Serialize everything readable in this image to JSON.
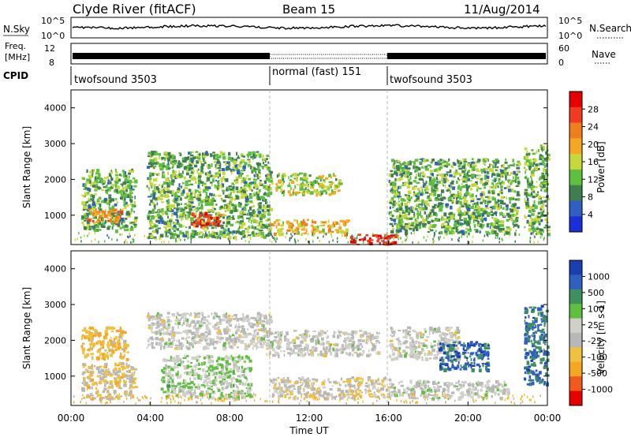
{
  "header": {
    "station": "Clyde River (fitACF)",
    "beam": "Beam 15",
    "date": "11/Aug/2014"
  },
  "panels": {
    "nsky": {
      "label": "N.Sky",
      "right_label": "N.Search",
      "left_ticks": [
        "10^5",
        "10^0"
      ],
      "right_ticks": [
        "10^5",
        "10^0"
      ]
    },
    "freq": {
      "label_line1": "Freq.",
      "label_line2": "[MHz]",
      "left_ticks": [
        "12",
        "8"
      ],
      "right_ticks": [
        "60",
        "0"
      ],
      "right_label": "Nave"
    },
    "cpid": {
      "label": "CPID",
      "segments": [
        "twofsound 3503",
        "normal (fast) 151",
        "twofsound 3503"
      ]
    }
  },
  "x_axis": {
    "title": "Time UT",
    "ticks": [
      "00:00",
      "04:00",
      "08:00",
      "12:00",
      "16:00",
      "20:00",
      "00:00"
    ]
  },
  "colors": {
    "power": [
      "#1a2fd6",
      "#2f5fc0",
      "#3f7f4f",
      "#5fbf3f",
      "#c8d83c",
      "#f5a623",
      "#f07e1e",
      "#ef3b22",
      "#e60000"
    ],
    "velocity": [
      "#e60000",
      "#f05a1e",
      "#f5a623",
      "#f0c040",
      "#b8b8b8",
      "#d0d0c8",
      "#5fbf3f",
      "#3f8f5f",
      "#2f5fc0",
      "#1a3fb0"
    ]
  },
  "chart_data": [
    {
      "type": "heatmap",
      "title": "Power",
      "ylabel": "Slant Range [km]",
      "xlabel": "Time UT",
      "x_ticks": [
        "00:00",
        "04:00",
        "08:00",
        "12:00",
        "16:00",
        "20:00",
        "00:00"
      ],
      "y_ticks": [
        "1000",
        "2000",
        "3000",
        "4000"
      ],
      "ylim": [
        180,
        4500
      ],
      "xlim_hours": [
        0,
        24
      ],
      "colorbar": {
        "label": "Power [dB]",
        "ticks": [
          "4",
          "8",
          "12",
          "16",
          "20",
          "24",
          "28"
        ],
        "range": [
          0,
          30
        ]
      },
      "regions": [
        {
          "start": 0.5,
          "end": 3.2,
          "min": 600,
          "max": 2300,
          "level": 0.35
        },
        {
          "start": 0.8,
          "end": 2.5,
          "min": 800,
          "max": 1200,
          "level": 0.7
        },
        {
          "start": 3.8,
          "end": 10.0,
          "min": 400,
          "max": 2800,
          "level": 0.35
        },
        {
          "start": 6.0,
          "end": 7.5,
          "min": 700,
          "max": 1100,
          "level": 0.85
        },
        {
          "start": 9.8,
          "end": 13.5,
          "min": 1600,
          "max": 2200,
          "level": 0.45
        },
        {
          "start": 10.0,
          "end": 14.0,
          "min": 500,
          "max": 900,
          "level": 0.6
        },
        {
          "start": 14.0,
          "end": 16.5,
          "min": 200,
          "max": 500,
          "level": 0.95
        },
        {
          "start": 16.0,
          "end": 22.5,
          "min": 500,
          "max": 2600,
          "level": 0.35
        },
        {
          "start": 22.8,
          "end": 24.0,
          "min": 500,
          "max": 3000,
          "level": 0.35
        }
      ]
    },
    {
      "type": "heatmap",
      "title": "Velocity",
      "ylabel": "Slant Range [km]",
      "xlabel": "Time UT",
      "x_ticks": [
        "00:00",
        "04:00",
        "08:00",
        "12:00",
        "16:00",
        "20:00",
        "00:00"
      ],
      "y_ticks": [
        "1000",
        "2000",
        "3000",
        "4000"
      ],
      "ylim": [
        180,
        4500
      ],
      "xlim_hours": [
        0,
        24
      ],
      "colorbar": {
        "label": "Velocity [m s-1]",
        "ticks": [
          "1000",
          "500",
          "100",
          "25",
          "-25",
          "-100",
          "-500",
          "-1000"
        ],
        "range": [
          -1000,
          1000
        ]
      },
      "regions": [
        {
          "start": 0.5,
          "end": 2.8,
          "min": 1500,
          "max": 2400,
          "value": -400
        },
        {
          "start": 0.5,
          "end": 3.2,
          "min": 400,
          "max": 1400,
          "value": -250
        },
        {
          "start": 3.8,
          "end": 10.0,
          "min": 1800,
          "max": 2800,
          "value": 0
        },
        {
          "start": 4.5,
          "end": 9.0,
          "min": 400,
          "max": 1600,
          "value": 200
        },
        {
          "start": 9.8,
          "end": 15.5,
          "min": 1600,
          "max": 2300,
          "value": 0
        },
        {
          "start": 10.0,
          "end": 16.0,
          "min": 400,
          "max": 1000,
          "value": -150
        },
        {
          "start": 16.0,
          "end": 19.5,
          "min": 1500,
          "max": 2400,
          "value": 0
        },
        {
          "start": 18.5,
          "end": 21.0,
          "min": 1200,
          "max": 2000,
          "value": 800
        },
        {
          "start": 16.0,
          "end": 22.0,
          "min": 400,
          "max": 900,
          "value": 50
        },
        {
          "start": 22.8,
          "end": 24.0,
          "min": 800,
          "max": 3000,
          "value": 700
        }
      ]
    }
  ]
}
